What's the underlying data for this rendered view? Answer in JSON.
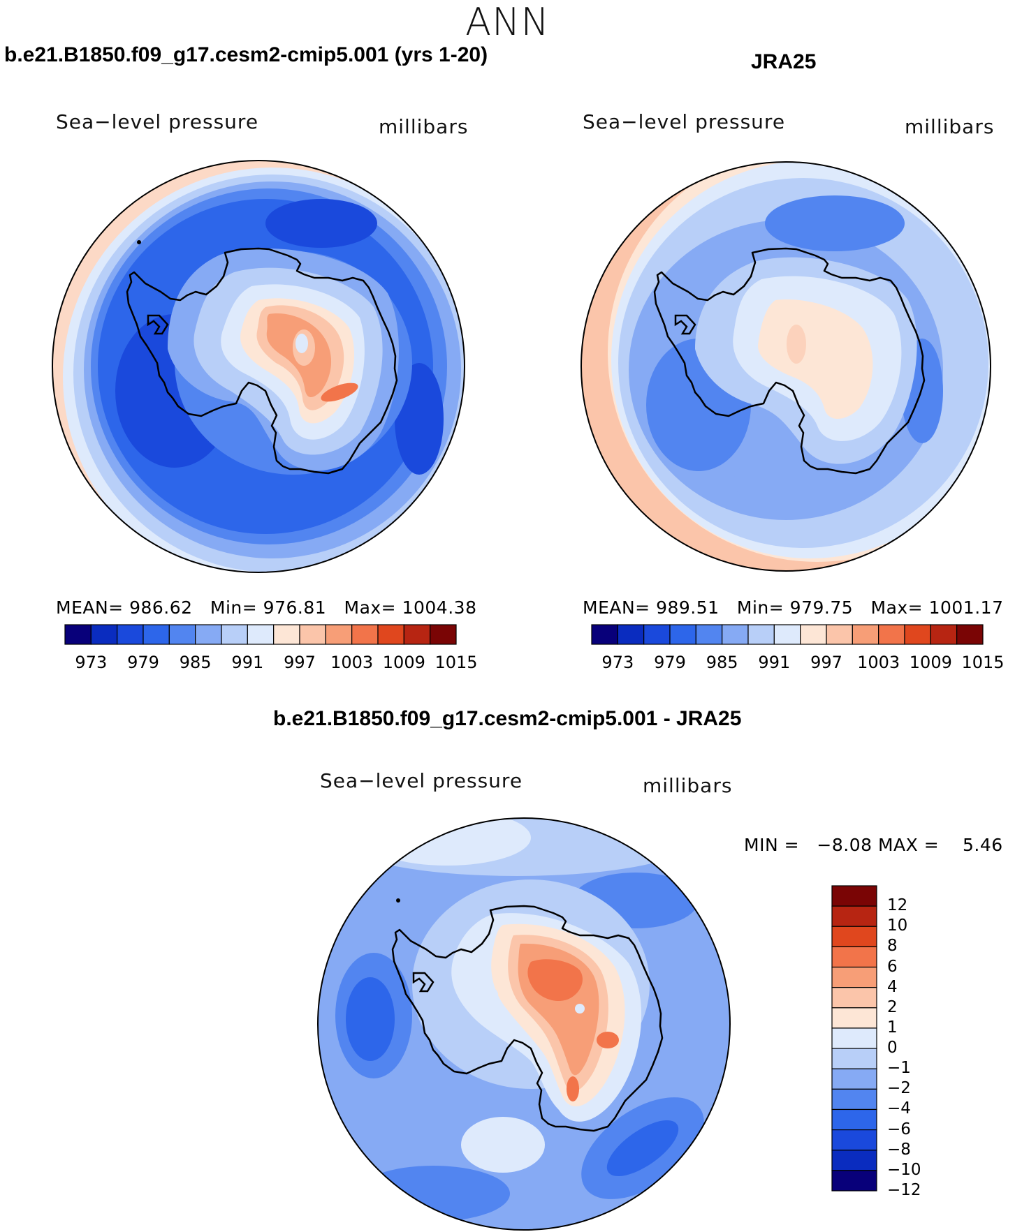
{
  "page_title": "ANN",
  "panels": [
    {
      "id": "model",
      "case_title": "b.e21.B1850.f09_g17.cesm2-cmip5.001 (yrs 1-20)",
      "variable": "Sea−level pressure",
      "units": "millibars",
      "stats": {
        "mean_label": "MEAN=",
        "mean": "986.62",
        "min_label": "Min=",
        "min": "976.81",
        "max_label": "Max=",
        "max": "1004.38"
      },
      "colorbar_ticks": [
        "973",
        "979",
        "985",
        "991",
        "997",
        "1003",
        "1009",
        "1015"
      ]
    },
    {
      "id": "obs",
      "case_title": "JRA25",
      "variable": "Sea−level pressure",
      "units": "millibars",
      "stats": {
        "mean_label": "MEAN=",
        "mean": "989.51",
        "min_label": "Min=",
        "min": "979.75",
        "max_label": "Max=",
        "max": "1001.17"
      },
      "colorbar_ticks": [
        "973",
        "979",
        "985",
        "991",
        "997",
        "1003",
        "1009",
        "1015"
      ]
    },
    {
      "id": "diff",
      "case_title": "b.e21.B1850.f09_g17.cesm2-cmip5.001 - JRA25",
      "variable": "Sea−level pressure",
      "units": "millibars",
      "stats": {
        "min_label": "MIN =",
        "min": "−8.08",
        "max_label": "MAX =",
        "max": "5.46"
      },
      "colorbar_ticks": [
        "12",
        "10",
        "8",
        "6",
        "4",
        "2",
        "1",
        "0",
        "−1",
        "−2",
        "−4",
        "−6",
        "−8",
        "−10",
        "−12"
      ]
    }
  ],
  "colors": {
    "abs_colorbar": [
      "#08007a",
      "#0a2cbf",
      "#1a49dc",
      "#2d66ea",
      "#5285f0",
      "#86aaf4",
      "#b8cff8",
      "#deeafc",
      "#fde6d6",
      "#fbc5aa",
      "#f79e77",
      "#f2744a",
      "#e0471e",
      "#b72512",
      "#7a0505"
    ],
    "diff_colorbar": [
      "#7a0505",
      "#b72512",
      "#e0471e",
      "#f2744a",
      "#f79e77",
      "#fbc5aa",
      "#fde6d6",
      "#deeafc",
      "#b8cff8",
      "#86aaf4",
      "#5285f0",
      "#2d66ea",
      "#1a49dc",
      "#0a2cbf",
      "#08007a"
    ]
  }
}
